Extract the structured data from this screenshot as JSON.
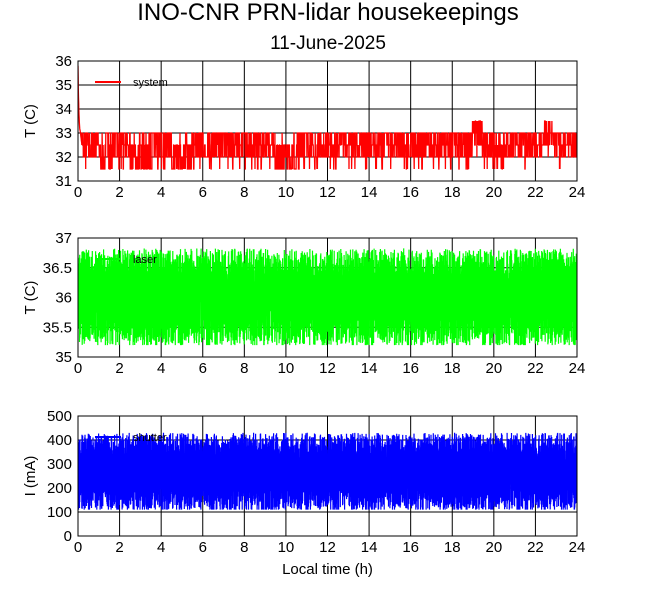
{
  "title": "INO-CNR PRN-lidar housekeepings",
  "subtitle": "11-June-2025",
  "chart_data": [
    {
      "type": "line",
      "ylabel": "T (C)",
      "xlabel": "",
      "xlim": [
        0,
        24
      ],
      "ylim": [
        31,
        36
      ],
      "xticks": [
        "0",
        "2",
        "4",
        "6",
        "8",
        "10",
        "12",
        "14",
        "16",
        "18",
        "20",
        "22",
        "24"
      ],
      "yticks": [
        "31",
        "32",
        "33",
        "34",
        "35",
        "36"
      ],
      "grid": true,
      "legend_position": "top-left",
      "series": [
        {
          "name": "system",
          "color": "#ff0000",
          "style": "step",
          "levels": [
            31.5,
            32,
            32.5,
            33
          ],
          "x": [
            0.0,
            0.02,
            0.05,
            0.08,
            0.12,
            0.2,
            0.7,
            1.3,
            2.0,
            3.0,
            4.0,
            5.0,
            6.0,
            7.0,
            8.0,
            9.0,
            10.0,
            11.0,
            12.0,
            13.0,
            14.0,
            15.0,
            15.8,
            16.6,
            17.5,
            18.5,
            19.2,
            19.7,
            20.5,
            21.5,
            22.6,
            23.2,
            24.0
          ],
          "y": [
            35.8,
            34.6,
            33.7,
            33.2,
            33.0,
            32.4,
            32.3,
            32.2,
            32.3,
            32.2,
            32.3,
            32.2,
            32.3,
            32.3,
            32.4,
            32.3,
            32.2,
            32.3,
            32.3,
            32.4,
            32.3,
            32.3,
            32.6,
            32.4,
            32.3,
            32.4,
            33.0,
            32.6,
            32.3,
            32.3,
            32.9,
            32.6,
            32.4
          ]
        }
      ]
    },
    {
      "type": "line",
      "ylabel": "T (C)",
      "xlabel": "",
      "xlim": [
        0,
        24
      ],
      "ylim": [
        35,
        37
      ],
      "xticks": [
        "0",
        "2",
        "4",
        "6",
        "8",
        "10",
        "12",
        "14",
        "16",
        "18",
        "20",
        "22",
        "24"
      ],
      "yticks": [
        "35",
        "35.5",
        "36",
        "36.5",
        "37"
      ],
      "grid": true,
      "legend_position": "top-left",
      "series": [
        {
          "name": "laser",
          "color": "#00ff00",
          "mean": 36.0,
          "min": 35.2,
          "max": 36.85
        }
      ]
    },
    {
      "type": "line",
      "ylabel": "I (mA)",
      "xlabel": "Local time (h)",
      "xlim": [
        0,
        24
      ],
      "ylim": [
        0,
        500
      ],
      "xticks": [
        "0",
        "2",
        "4",
        "6",
        "8",
        "10",
        "12",
        "14",
        "16",
        "18",
        "20",
        "22",
        "24"
      ],
      "yticks": [
        "0",
        "100",
        "200",
        "300",
        "400",
        "500"
      ],
      "grid": true,
      "legend_position": "top-left",
      "series": [
        {
          "name": "shutter",
          "color": "#0000ff",
          "mean": 265,
          "min": 110,
          "max": 440
        }
      ]
    }
  ]
}
